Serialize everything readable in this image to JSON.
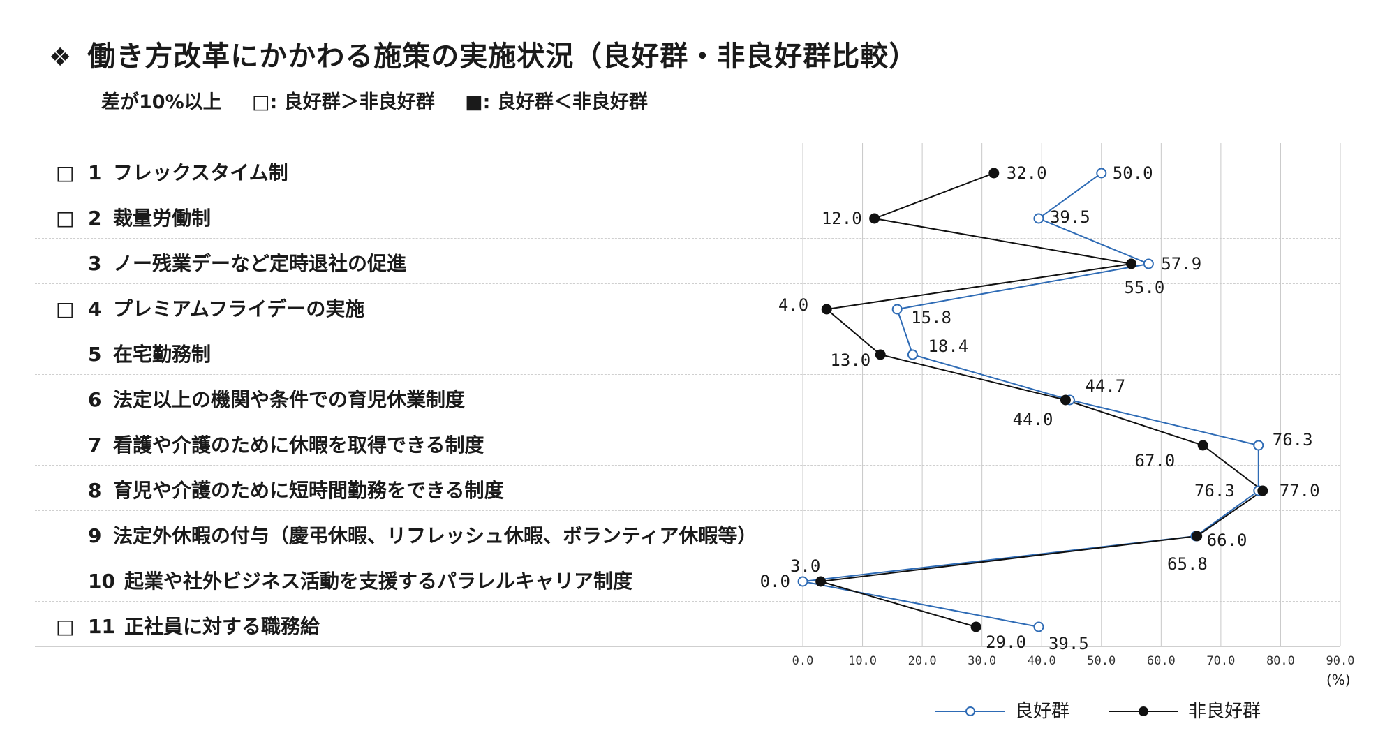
{
  "title": {
    "mark": "❖",
    "text": "働き方改革にかかわる施策の実施状況（良好群・非良好群比較）"
  },
  "subtitle": {
    "criterion": "差が10%以上",
    "open_box_note": "□: 良好群＞非良好群",
    "filled_box_note": "■: 良好群＜非良好群"
  },
  "items": [
    {
      "num": "1",
      "name": "フレックスタイム制",
      "mark": "□"
    },
    {
      "num": "2",
      "name": "裁量労働制",
      "mark": "□"
    },
    {
      "num": "3",
      "name": "ノー残業デーなど定時退社の促進",
      "mark": ""
    },
    {
      "num": "4",
      "name": "プレミアムフライデーの実施",
      "mark": "□"
    },
    {
      "num": "5",
      "name": "在宅勤務制",
      "mark": ""
    },
    {
      "num": "6",
      "name": "法定以上の機関や条件での育児休業制度",
      "mark": ""
    },
    {
      "num": "7",
      "name": "看護や介護のために休暇を取得できる制度",
      "mark": ""
    },
    {
      "num": "8",
      "name": "育児や介護のために短時間勤務をできる制度",
      "mark": ""
    },
    {
      "num": "9",
      "name": "法定外休暇の付与（慶弔休暇、リフレッシュ休暇、ボランティア休暇等）",
      "mark": ""
    },
    {
      "num": "10",
      "name": "起業や社外ビジネス活動を支援するパラレルキャリア制度",
      "mark": ""
    },
    {
      "num": "11",
      "name": "正社員に対する職務給",
      "mark": "□"
    }
  ],
  "chart_data": {
    "type": "line",
    "orientation": "horizontal",
    "categories": [
      "1",
      "2",
      "3",
      "4",
      "5",
      "6",
      "7",
      "8",
      "9",
      "10",
      "11"
    ],
    "series": [
      {
        "name": "良好群",
        "color": "#2e6bb5",
        "marker": "open-circle",
        "values": [
          50.0,
          39.5,
          57.9,
          15.8,
          18.4,
          44.7,
          76.3,
          76.3,
          65.8,
          0.0,
          39.5
        ]
      },
      {
        "name": "非良好群",
        "color": "#111111",
        "marker": "filled-circle",
        "values": [
          32.0,
          12.0,
          55.0,
          4.0,
          13.0,
          44.0,
          67.0,
          77.0,
          66.0,
          3.0,
          29.0
        ]
      }
    ],
    "xlim": [
      0,
      90
    ],
    "x_ticks": [
      "0.0",
      "10.0",
      "20.0",
      "30.0",
      "40.0",
      "50.0",
      "60.0",
      "70.0",
      "80.0",
      "90.0"
    ],
    "x_unit": "(%)",
    "grid": true,
    "legend_position": "bottom-right"
  }
}
